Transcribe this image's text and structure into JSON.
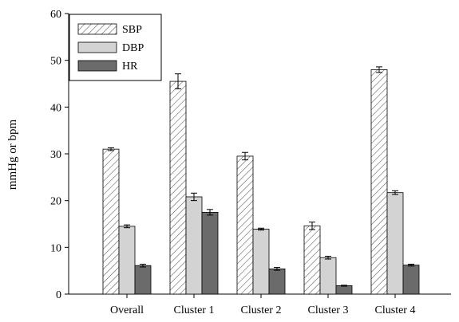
{
  "chart_data": {
    "type": "bar",
    "categories": [
      "Overall",
      "Cluster 1",
      "Cluster 2",
      "Cluster 3",
      "Cluster 4"
    ],
    "series": [
      {
        "name": "SBP",
        "values": [
          31.0,
          45.5,
          29.5,
          14.6,
          48.0
        ],
        "errors": [
          0.3,
          1.6,
          0.8,
          0.8,
          0.6
        ],
        "color": "#ffffff",
        "pattern": "hatch"
      },
      {
        "name": "DBP",
        "values": [
          14.5,
          20.8,
          13.9,
          7.8,
          21.7
        ],
        "errors": [
          0.3,
          0.8,
          0.2,
          0.3,
          0.4
        ],
        "color": "#d3d3d3",
        "pattern": "solid"
      },
      {
        "name": "HR",
        "values": [
          6.1,
          17.5,
          5.4,
          1.8,
          6.2
        ],
        "errors": [
          0.3,
          0.6,
          0.3,
          0.1,
          0.2
        ],
        "color": "#6b6b6b",
        "pattern": "solid"
      }
    ],
    "title": "",
    "xlabel": "",
    "ylabel": "mmHg or bpm",
    "ylim": [
      0,
      60
    ],
    "yticks": [
      "0",
      "10",
      "20",
      "30",
      "40",
      "50",
      "60"
    ],
    "grid": false,
    "legend_position": "top-left"
  }
}
